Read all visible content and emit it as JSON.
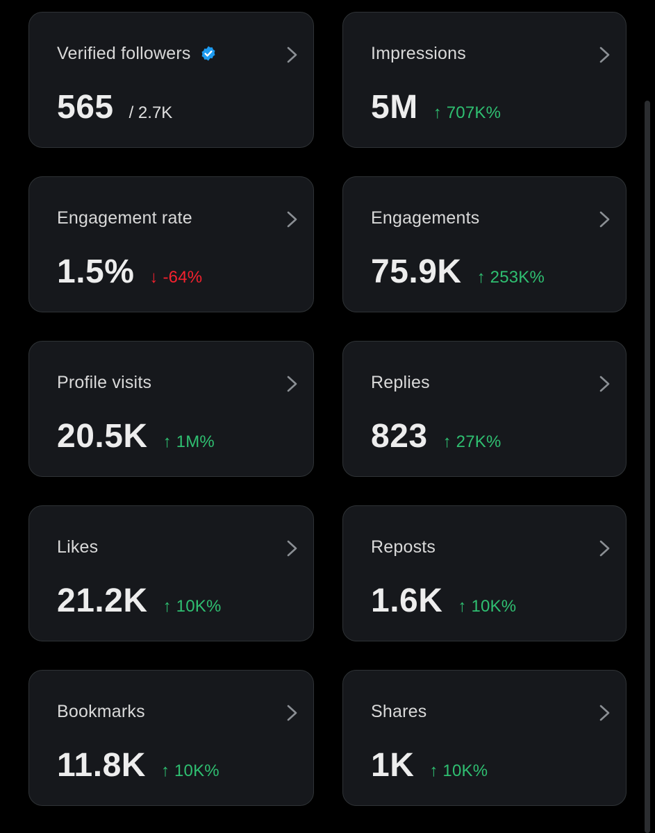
{
  "theme": {
    "background": "#000000",
    "card_background": "#16181c",
    "card_border": "#2f3336",
    "up_color": "#2fbf71",
    "down_color": "#f4212e",
    "verified_color": "#1d9bf0"
  },
  "metrics": [
    {
      "label": "Verified followers",
      "value": "565",
      "total": "/ 2.7K",
      "verified_icon": "verified-badge-icon"
    },
    {
      "label": "Impressions",
      "value": "5M",
      "change": "↑ 707K%",
      "direction": "up"
    },
    {
      "label": "Engagement rate",
      "value": "1.5%",
      "change": "↓ -64%",
      "direction": "down"
    },
    {
      "label": "Engagements",
      "value": "75.9K",
      "change": "↑ 253K%",
      "direction": "up"
    },
    {
      "label": "Profile visits",
      "value": "20.5K",
      "change": "↑ 1M%",
      "direction": "up"
    },
    {
      "label": "Replies",
      "value": "823",
      "change": "↑ 27K%",
      "direction": "up"
    },
    {
      "label": "Likes",
      "value": "21.2K",
      "change": "↑ 10K%",
      "direction": "up"
    },
    {
      "label": "Reposts",
      "value": "1.6K",
      "change": "↑ 10K%",
      "direction": "up"
    },
    {
      "label": "Bookmarks",
      "value": "11.8K",
      "change": "↑ 10K%",
      "direction": "up"
    },
    {
      "label": "Shares",
      "value": "1K",
      "change": "↑ 10K%",
      "direction": "up"
    }
  ]
}
